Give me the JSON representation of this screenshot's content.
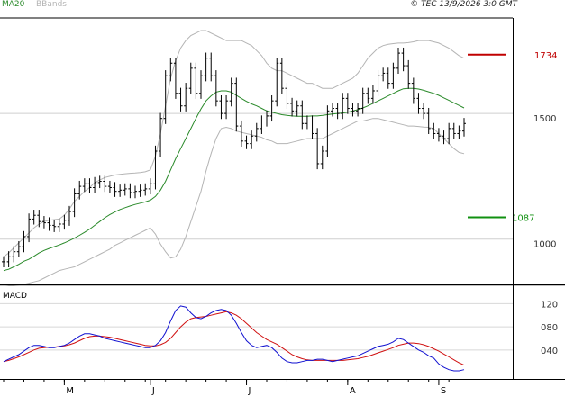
{
  "header": {
    "legend": [
      {
        "label": "MA20",
        "color": "#2a8a2a"
      },
      {
        "label": "BBands",
        "color": "#b4b4b4"
      }
    ],
    "copyright": "© TEC 13/9/2026 3:0 GMT"
  },
  "chart_data": [
    {
      "type": "line",
      "panel": "price",
      "y_ticks": [
        "1000",
        "1500"
      ],
      "y_tick_values": [
        1000,
        1500
      ],
      "ylim": [
        820,
        1880
      ],
      "x_labels": [
        "M",
        "J",
        "J",
        "A",
        "S"
      ],
      "grid": true,
      "levels": [
        {
          "label": "1734",
          "value": 1734,
          "color": "#c00000"
        },
        {
          "label": "1087",
          "value": 1087,
          "color": "#109010"
        }
      ],
      "series": [
        {
          "key": "close",
          "color": "#000000",
          "style": "ohlc-bars",
          "values": [
            910,
            930,
            950,
            970,
            1010,
            1080,
            1095,
            1070,
            1065,
            1055,
            1050,
            1060,
            1075,
            1110,
            1180,
            1210,
            1220,
            1205,
            1225,
            1230,
            1210,
            1205,
            1190,
            1195,
            1200,
            1185,
            1190,
            1195,
            1200,
            1220,
            1350,
            1480,
            1650,
            1700,
            1580,
            1530,
            1600,
            1680,
            1580,
            1650,
            1720,
            1650,
            1550,
            1500,
            1550,
            1620,
            1450,
            1390,
            1380,
            1410,
            1440,
            1470,
            1490,
            1550,
            1700,
            1600,
            1540,
            1510,
            1530,
            1460,
            1470,
            1420,
            1300,
            1350,
            1510,
            1520,
            1500,
            1560,
            1520,
            1510,
            1520,
            1580,
            1560,
            1590,
            1650,
            1660,
            1620,
            1680,
            1740,
            1690,
            1620,
            1560,
            1520,
            1500,
            1440,
            1420,
            1410,
            1400,
            1440,
            1420,
            1430,
            1460
          ]
        },
        {
          "key": "ma20",
          "color": "#2a8a2a",
          "values": [
            875,
            880,
            890,
            900,
            912,
            920,
            932,
            945,
            955,
            963,
            970,
            977,
            985,
            994,
            1004,
            1015,
            1027,
            1040,
            1055,
            1070,
            1085,
            1098,
            1108,
            1118,
            1125,
            1132,
            1138,
            1143,
            1148,
            1155,
            1170,
            1195,
            1230,
            1275,
            1320,
            1360,
            1400,
            1440,
            1480,
            1518,
            1550,
            1570,
            1585,
            1590,
            1590,
            1585,
            1572,
            1560,
            1548,
            1538,
            1530,
            1520,
            1510,
            1505,
            1500,
            1495,
            1492,
            1490,
            1489,
            1489,
            1489,
            1490,
            1490,
            1492,
            1495,
            1498,
            1500,
            1502,
            1505,
            1510,
            1515,
            1522,
            1530,
            1540,
            1550,
            1560,
            1570,
            1580,
            1590,
            1598,
            1600,
            1600,
            1597,
            1592,
            1586,
            1580,
            1572,
            1562,
            1552,
            1542,
            1532,
            1522
          ]
        },
        {
          "key": "bb_upper",
          "color": "#b4b4b4",
          "values": [
            930,
            945,
            965,
            985,
            1005,
            1025,
            1045,
            1060,
            1070,
            1075,
            1078,
            1080,
            1095,
            1120,
            1150,
            1170,
            1190,
            1205,
            1225,
            1235,
            1245,
            1250,
            1255,
            1258,
            1260,
            1262,
            1263,
            1265,
            1268,
            1275,
            1330,
            1420,
            1530,
            1640,
            1710,
            1760,
            1790,
            1810,
            1820,
            1830,
            1830,
            1820,
            1810,
            1800,
            1790,
            1790,
            1790,
            1790,
            1780,
            1770,
            1750,
            1730,
            1700,
            1680,
            1670,
            1670,
            1660,
            1650,
            1640,
            1630,
            1620,
            1620,
            1610,
            1600,
            1600,
            1600,
            1610,
            1620,
            1630,
            1640,
            1660,
            1690,
            1720,
            1740,
            1760,
            1770,
            1775,
            1778,
            1780,
            1780,
            1782,
            1785,
            1790,
            1790,
            1790,
            1785,
            1780,
            1770,
            1760,
            1745,
            1730,
            1720
          ]
        },
        {
          "key": "bb_lower",
          "color": "#b4b4b4",
          "values": [
            820,
            815,
            815,
            818,
            820,
            825,
            830,
            835,
            845,
            855,
            865,
            875,
            880,
            885,
            890,
            900,
            910,
            920,
            930,
            940,
            950,
            960,
            975,
            985,
            995,
            1005,
            1015,
            1025,
            1035,
            1045,
            1020,
            980,
            950,
            925,
            930,
            960,
            1010,
            1070,
            1130,
            1190,
            1270,
            1340,
            1400,
            1440,
            1445,
            1440,
            1430,
            1425,
            1420,
            1415,
            1410,
            1405,
            1395,
            1390,
            1380,
            1380,
            1380,
            1385,
            1390,
            1395,
            1400,
            1400,
            1400,
            1400,
            1410,
            1420,
            1430,
            1440,
            1450,
            1460,
            1470,
            1470,
            1475,
            1480,
            1480,
            1475,
            1470,
            1465,
            1460,
            1455,
            1450,
            1450,
            1448,
            1446,
            1445,
            1440,
            1420,
            1400,
            1380,
            1360,
            1345,
            1340
          ]
        }
      ]
    },
    {
      "type": "line",
      "panel": "macd",
      "title": "MACD",
      "y_ticks": [
        "120",
        "080",
        "040"
      ],
      "y_tick_values": [
        120,
        80,
        40
      ],
      "ylim": [
        -10,
        150
      ],
      "grid": true,
      "series": [
        {
          "key": "macd",
          "color": "#1010d0",
          "values": [
            20,
            24,
            28,
            32,
            38,
            44,
            48,
            48,
            46,
            44,
            44,
            46,
            48,
            52,
            58,
            64,
            68,
            68,
            66,
            64,
            60,
            58,
            56,
            54,
            52,
            50,
            48,
            46,
            44,
            44,
            48,
            56,
            70,
            90,
            108,
            116,
            114,
            104,
            96,
            94,
            98,
            104,
            108,
            110,
            108,
            100,
            86,
            70,
            56,
            48,
            44,
            46,
            48,
            44,
            36,
            26,
            20,
            18,
            18,
            20,
            22,
            22,
            24,
            24,
            22,
            20,
            22,
            24,
            26,
            28,
            30,
            34,
            38,
            42,
            46,
            48,
            50,
            54,
            60,
            58,
            52,
            46,
            40,
            36,
            30,
            26,
            16,
            10,
            6,
            4,
            4,
            6
          ]
        },
        {
          "key": "signal",
          "color": "#d01010",
          "values": [
            20,
            22,
            25,
            28,
            32,
            36,
            40,
            43,
            44,
            45,
            45,
            46,
            47,
            49,
            52,
            56,
            60,
            63,
            64,
            64,
            63,
            62,
            60,
            58,
            56,
            54,
            52,
            50,
            48,
            47,
            47,
            49,
            53,
            60,
            70,
            80,
            88,
            94,
            96,
            97,
            98,
            100,
            102,
            104,
            106,
            104,
            100,
            94,
            86,
            78,
            70,
            64,
            58,
            54,
            50,
            44,
            38,
            32,
            28,
            25,
            23,
            22,
            22,
            22,
            22,
            22,
            22,
            22,
            23,
            24,
            25,
            27,
            29,
            32,
            35,
            38,
            41,
            44,
            48,
            50,
            52,
            52,
            51,
            49,
            46,
            42,
            38,
            33,
            28,
            23,
            18,
            14
          ]
        }
      ]
    }
  ]
}
